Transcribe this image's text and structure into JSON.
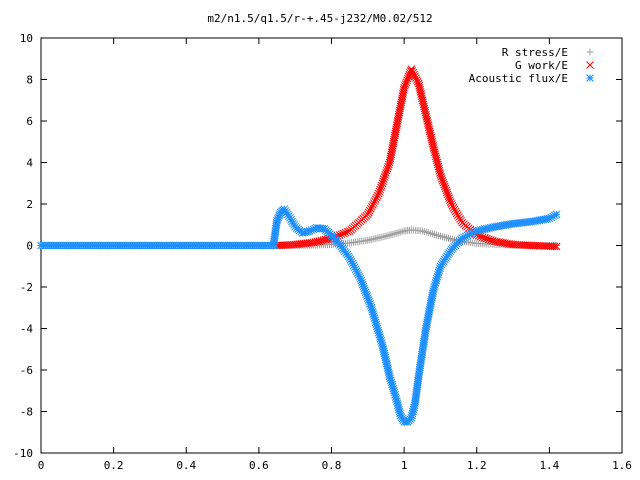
{
  "chart_data": {
    "type": "scatter",
    "title": "m2/n1.5/q1.5/r-+.45-j232/M0.02/512",
    "xlabel": "",
    "ylabel": "",
    "xlim": [
      0,
      1.6
    ],
    "ylim": [
      -10,
      10
    ],
    "x_ticks": [
      "0",
      "0.2",
      "0.4",
      "0.6",
      "0.8",
      "1",
      "1.2",
      "1.4",
      "1.6"
    ],
    "y_ticks": [
      "10",
      "8",
      "6",
      "4",
      "2",
      "0",
      "-2",
      "-4",
      "-6",
      "-8",
      "-10"
    ],
    "grid": false,
    "legend_position": "top-right",
    "series": [
      {
        "name": "R stress/E",
        "marker": "plus",
        "color": "#a0a0a0",
        "x": [
          0.65,
          0.7,
          0.75,
          0.8,
          0.85,
          0.9,
          0.95,
          1.0,
          1.02,
          1.05,
          1.1,
          1.15,
          1.2,
          1.25,
          1.3,
          1.35,
          1.4,
          1.42
        ],
        "y": [
          0.0,
          0.0,
          0.02,
          0.05,
          0.12,
          0.25,
          0.45,
          0.7,
          0.75,
          0.7,
          0.45,
          0.22,
          0.1,
          0.05,
          0.02,
          0.01,
          0.0,
          0.0
        ]
      },
      {
        "name": "G work/E",
        "marker": "cross",
        "color": "#ff0000",
        "x": [
          0.65,
          0.7,
          0.75,
          0.8,
          0.85,
          0.9,
          0.93,
          0.96,
          0.98,
          1.0,
          1.02,
          1.04,
          1.06,
          1.08,
          1.1,
          1.13,
          1.16,
          1.2,
          1.25,
          1.3,
          1.35,
          1.42
        ],
        "y": [
          0.0,
          0.05,
          0.15,
          0.35,
          0.7,
          1.5,
          2.5,
          4.0,
          5.8,
          7.6,
          8.5,
          7.8,
          6.3,
          4.8,
          3.4,
          2.0,
          1.1,
          0.5,
          0.2,
          0.05,
          0.0,
          -0.05
        ]
      },
      {
        "name": "Acoustic flux/E",
        "marker": "star",
        "color": "#1e8fff",
        "x": [
          0.0,
          0.1,
          0.2,
          0.3,
          0.4,
          0.5,
          0.6,
          0.64,
          0.65,
          0.66,
          0.67,
          0.68,
          0.7,
          0.72,
          0.74,
          0.76,
          0.78,
          0.8,
          0.82,
          0.85,
          0.88,
          0.91,
          0.94,
          0.96,
          0.98,
          0.99,
          1.0,
          1.01,
          1.02,
          1.03,
          1.04,
          1.06,
          1.08,
          1.1,
          1.13,
          1.16,
          1.2,
          1.25,
          1.3,
          1.35,
          1.4,
          1.42
        ],
        "y": [
          0.0,
          0.0,
          0.0,
          0.0,
          0.0,
          0.0,
          0.0,
          0.0,
          1.2,
          1.6,
          1.75,
          1.5,
          0.9,
          0.6,
          0.7,
          0.85,
          0.8,
          0.5,
          0.1,
          -0.6,
          -1.6,
          -3.0,
          -4.8,
          -6.3,
          -7.5,
          -8.2,
          -8.5,
          -8.5,
          -8.3,
          -7.6,
          -6.3,
          -4.0,
          -2.2,
          -1.0,
          -0.2,
          0.35,
          0.7,
          0.9,
          1.05,
          1.15,
          1.3,
          1.5
        ]
      }
    ]
  }
}
